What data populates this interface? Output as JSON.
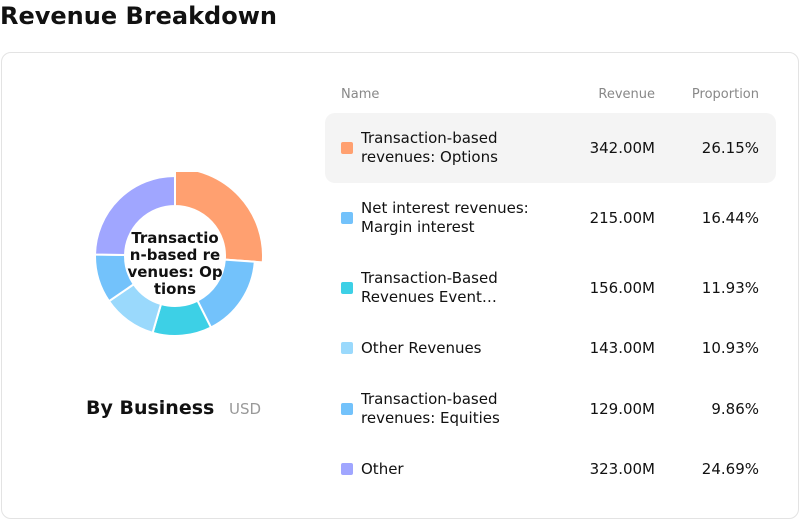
{
  "title": "Revenue Breakdown",
  "columns": {
    "name": "Name",
    "revenue": "Revenue",
    "proportion": "Proportion"
  },
  "breakdown_label": "By Business",
  "unit_label": "USD",
  "center_label": "Transaction-based revenues: Options",
  "selected_index": 0,
  "rows": [
    {
      "name": "Transaction-based revenues: Options",
      "revenue": "342.00M",
      "proportion": "26.15%",
      "color": "#FFA070"
    },
    {
      "name": "Net interest revenues: Margin interest",
      "revenue": "215.00M",
      "proportion": "16.44%",
      "color": "#73C2FB"
    },
    {
      "name": "Transaction-Based Revenues Event Contracts",
      "revenue": "156.00M",
      "proportion": "11.93%",
      "color": "#3DD0E6"
    },
    {
      "name": "Other Revenues",
      "revenue": "143.00M",
      "proportion": "10.93%",
      "color": "#9AD9FC"
    },
    {
      "name": "Transaction-based revenues: Equities",
      "revenue": "129.00M",
      "proportion": "9.86%",
      "color": "#73C2FB"
    },
    {
      "name": "Other",
      "revenue": "323.00M",
      "proportion": "24.69%",
      "color": "#A0A6FF"
    }
  ],
  "chart_data": {
    "type": "pie",
    "variant": "donut",
    "categories": [
      "Transaction-based revenues: Options",
      "Net interest revenues: Margin interest",
      "Transaction-Based Revenues Event Contracts",
      "Other Revenues",
      "Transaction-based revenues: Equities",
      "Other"
    ],
    "values": [
      342,
      215,
      156,
      143,
      129,
      323
    ],
    "unit": "M USD",
    "highlighted": "Transaction-based revenues: Options"
  }
}
